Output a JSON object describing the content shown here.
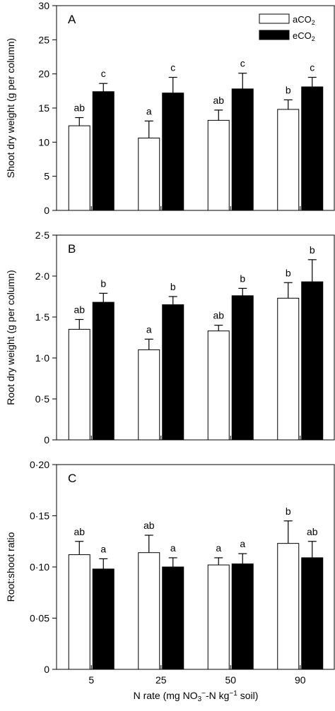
{
  "chart_data": [
    {
      "type": "bar",
      "panel_label": "A",
      "ylabel": "Shoot dry weight (g per column)",
      "ylim": [
        0,
        30
      ],
      "yticks": [
        0,
        5,
        10,
        15,
        20,
        25,
        30
      ],
      "ytick_labels": [
        "0",
        "5",
        "10",
        "15",
        "20",
        "25",
        "30"
      ],
      "categories": [
        "5",
        "25",
        "50",
        "90"
      ],
      "series": [
        {
          "name": "aCO2",
          "fill": "#ffffff",
          "values": [
            12.4,
            10.6,
            13.2,
            14.8
          ],
          "errors": [
            1.2,
            2.5,
            1.5,
            1.4
          ],
          "letters": [
            "ab",
            "a",
            "ab",
            "b"
          ]
        },
        {
          "name": "eCO2",
          "fill": "#000000",
          "values": [
            17.4,
            17.2,
            17.8,
            18.1
          ],
          "errors": [
            1.2,
            2.3,
            2.3,
            1.4
          ],
          "letters": [
            "c",
            "c",
            "c",
            "c"
          ]
        }
      ],
      "legend": "top-right",
      "grid": false
    },
    {
      "type": "bar",
      "panel_label": "B",
      "ylabel": "Root dry weight (g per column)",
      "ylim": [
        0,
        2.5
      ],
      "yticks": [
        0,
        0.5,
        1.0,
        1.5,
        2.0,
        2.5
      ],
      "ytick_labels": [
        "0",
        "0·5",
        "1·0",
        "1·5",
        "2·0",
        "2·5"
      ],
      "categories": [
        "5",
        "25",
        "50",
        "90"
      ],
      "series": [
        {
          "name": "aCO2",
          "fill": "#ffffff",
          "values": [
            1.35,
            1.1,
            1.33,
            1.73
          ],
          "errors": [
            0.12,
            0.13,
            0.07,
            0.19
          ],
          "letters": [
            "ab",
            "a",
            "ab",
            "b"
          ]
        },
        {
          "name": "eCO2",
          "fill": "#000000",
          "values": [
            1.68,
            1.65,
            1.76,
            1.93
          ],
          "errors": [
            0.11,
            0.1,
            0.09,
            0.27
          ],
          "letters": [
            "b",
            "b",
            "b",
            "b"
          ]
        }
      ],
      "grid": false
    },
    {
      "type": "bar",
      "panel_label": "C",
      "ylabel": "Root:shoot ratio",
      "ylim": [
        0,
        0.2
      ],
      "yticks": [
        0,
        0.05,
        0.1,
        0.15,
        0.2
      ],
      "ytick_labels": [
        "0",
        "0·05",
        "0·10",
        "0·15",
        "0·20"
      ],
      "categories": [
        "5",
        "25",
        "50",
        "90"
      ],
      "series": [
        {
          "name": "aCO2",
          "fill": "#ffffff",
          "values": [
            0.112,
            0.114,
            0.102,
            0.123
          ],
          "errors": [
            0.013,
            0.017,
            0.007,
            0.022
          ],
          "letters": [
            "ab",
            "ab",
            "a",
            "b"
          ]
        },
        {
          "name": "eCO2",
          "fill": "#000000",
          "values": [
            0.098,
            0.1,
            0.103,
            0.109
          ],
          "errors": [
            0.01,
            0.009,
            0.01,
            0.016
          ],
          "letters": [
            "a",
            "a",
            "a",
            "ab"
          ]
        }
      ],
      "grid": false
    }
  ],
  "legend": {
    "items": [
      {
        "prefix": "aCO",
        "sub": "2",
        "fill": "#ffffff"
      },
      {
        "prefix": "eCO",
        "sub": "2",
        "fill": "#000000"
      }
    ]
  },
  "xaxis": {
    "title_pre": "N rate (mg NO",
    "title_sub": "3",
    "title_sup": "−",
    "title_mid": "-N kg",
    "title_sup2": "−1",
    "title_post": " soil)"
  }
}
